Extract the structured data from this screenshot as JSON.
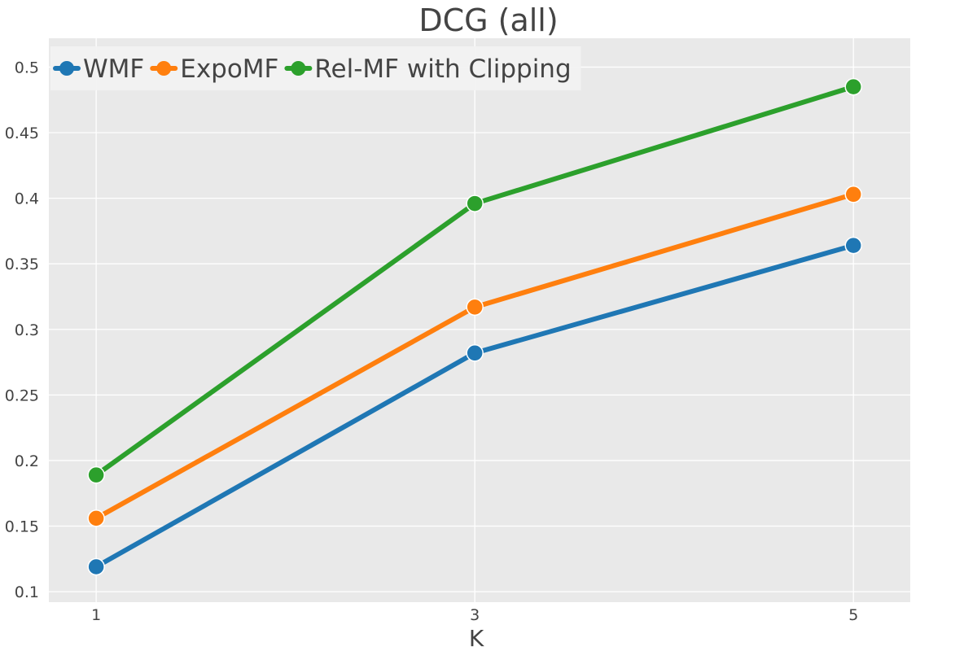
{
  "chart_data": {
    "type": "line",
    "title": "DCG (all)",
    "xlabel": "K",
    "ylabel": "",
    "x": [
      1,
      3,
      5
    ],
    "x_tick_labels": [
      "1",
      "3",
      "5"
    ],
    "xlim": [
      0.75,
      5.3
    ],
    "ylim": [
      0.092,
      0.522
    ],
    "y_ticks": [
      0.1,
      0.15,
      0.2,
      0.25,
      0.3,
      0.35,
      0.4,
      0.45,
      0.5
    ],
    "y_tick_labels": [
      "0.1",
      "0.15",
      "0.2",
      "0.25",
      "0.3",
      "0.35",
      "0.4",
      "0.45",
      "0.5"
    ],
    "grid": true,
    "legend_position": "top-left",
    "series": [
      {
        "name": "WMF",
        "color": "#1f77b4",
        "values": [
          0.119,
          0.282,
          0.364
        ]
      },
      {
        "name": "ExpoMF",
        "color": "#ff7f0e",
        "values": [
          0.156,
          0.317,
          0.403
        ]
      },
      {
        "name": "Rel-MF with Clipping",
        "color": "#2ca02c",
        "values": [
          0.189,
          0.396,
          0.485
        ]
      }
    ],
    "colors": {
      "plot_background": "#e9e9e9",
      "gridline": "#ffffff",
      "text": "#444444"
    }
  }
}
